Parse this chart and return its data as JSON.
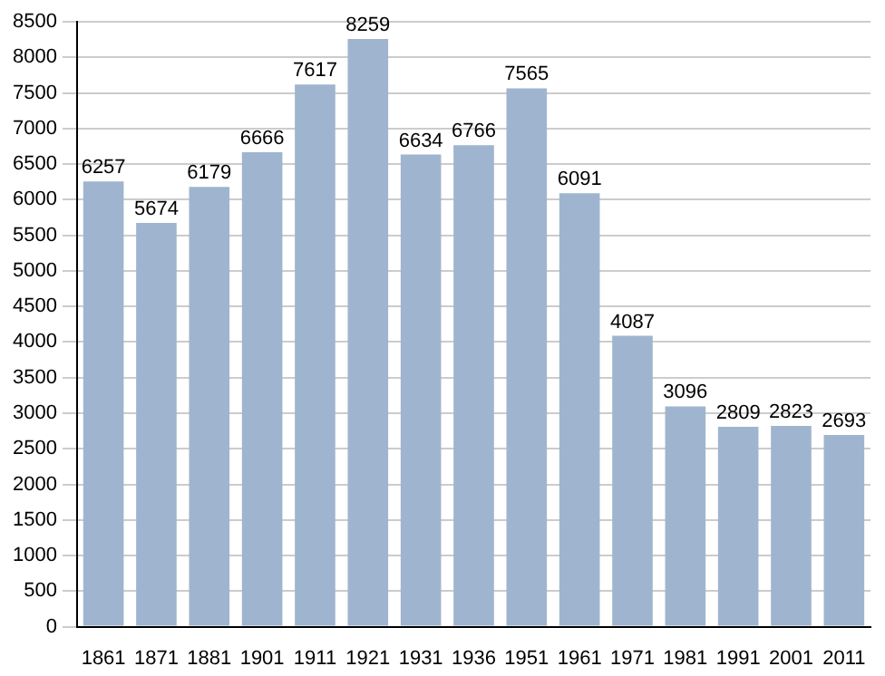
{
  "chart_data": {
    "type": "bar",
    "categories": [
      "1861",
      "1871",
      "1881",
      "1901",
      "1911",
      "1921",
      "1931",
      "1936",
      "1951",
      "1961",
      "1971",
      "1981",
      "1991",
      "2001",
      "2011"
    ],
    "values": [
      6257,
      5674,
      6179,
      6666,
      7617,
      8259,
      6634,
      6766,
      7565,
      6091,
      4087,
      3096,
      2809,
      2823,
      2693
    ],
    "color": "#9fb5cf",
    "ylim": [
      0,
      8500
    ],
    "yticks": [
      0,
      500,
      1000,
      1500,
      2000,
      2500,
      3000,
      3500,
      4000,
      4500,
      5000,
      5500,
      6000,
      6500,
      7000,
      7500,
      8000,
      8500
    ],
    "grid": "y",
    "data_labels": true
  }
}
